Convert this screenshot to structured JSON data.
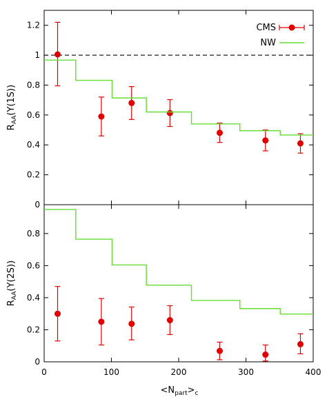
{
  "chart_data": [
    {
      "type": "scatter",
      "panel": "upper",
      "ylabel": {
        "base": "R",
        "sub": "AA",
        "rest": "(Υ(1S))"
      },
      "xlim": [
        0,
        400
      ],
      "ylim": [
        0,
        1.3
      ],
      "yticks": [
        0,
        0.2,
        0.4,
        0.6,
        0.8,
        1,
        1.2
      ],
      "ytick_labels": [
        "0",
        "0.2",
        "0.4",
        "0.6",
        "0.8",
        "1",
        "1.2"
      ],
      "reference_line": {
        "y": 1,
        "style": "dashed",
        "color": "#000000"
      },
      "legend": {
        "position": "top-right",
        "entries": [
          "CMS",
          "NW"
        ]
      },
      "series": [
        {
          "name": "CMS",
          "kind": "points-with-error-bars",
          "color": "#e00000",
          "x": [
            20,
            85,
            130,
            187,
            261,
            329,
            381
          ],
          "y": [
            1.005,
            0.59,
            0.68,
            0.613,
            0.481,
            0.43,
            0.41
          ],
          "yerr_low": [
            0.21,
            0.13,
            0.11,
            0.09,
            0.065,
            0.07,
            0.065
          ],
          "yerr_high": [
            0.215,
            0.13,
            0.11,
            0.09,
            0.065,
            0.07,
            0.065
          ]
        },
        {
          "name": "NW",
          "kind": "step",
          "color": "#66dd33",
          "edges": [
            0,
            47,
            101,
            152,
            219,
            291,
            351,
            400
          ],
          "values": [
            0.967,
            0.832,
            0.714,
            0.62,
            0.54,
            0.495,
            0.466
          ]
        }
      ]
    },
    {
      "type": "scatter",
      "panel": "lower",
      "ylabel": {
        "base": "R",
        "sub": "AA",
        "rest": "(Υ(2S))"
      },
      "xlabel": {
        "pre": "<N",
        "sub1": "part",
        "mid": ">",
        "sub2": "c"
      },
      "xlim": [
        0,
        400
      ],
      "ylim": [
        0,
        0.98
      ],
      "xticks": [
        0,
        100,
        200,
        300,
        400
      ],
      "xtick_labels": [
        "0",
        "100",
        "200",
        "300",
        "400"
      ],
      "yticks": [
        0,
        0.2,
        0.4,
        0.6,
        0.8
      ],
      "ytick_labels": [
        "0",
        "0.2",
        "0.4",
        "0.6",
        "0.8"
      ],
      "series": [
        {
          "name": "CMS",
          "kind": "points-with-error-bars",
          "color": "#e00000",
          "x": [
            20,
            85,
            130,
            187,
            261,
            329,
            381
          ],
          "y": [
            0.3,
            0.25,
            0.237,
            0.26,
            0.068,
            0.045,
            0.11
          ],
          "yerr_low": [
            0.17,
            0.145,
            0.1,
            0.09,
            0.055,
            0.04,
            0.06
          ],
          "yerr_high": [
            0.17,
            0.145,
            0.105,
            0.09,
            0.055,
            0.06,
            0.065
          ]
        },
        {
          "name": "NW",
          "kind": "step",
          "color": "#66dd33",
          "edges": [
            0,
            47,
            101,
            152,
            219,
            291,
            351,
            400
          ],
          "values": [
            0.95,
            0.765,
            0.604,
            0.478,
            0.383,
            0.332,
            0.298
          ]
        }
      ]
    }
  ]
}
